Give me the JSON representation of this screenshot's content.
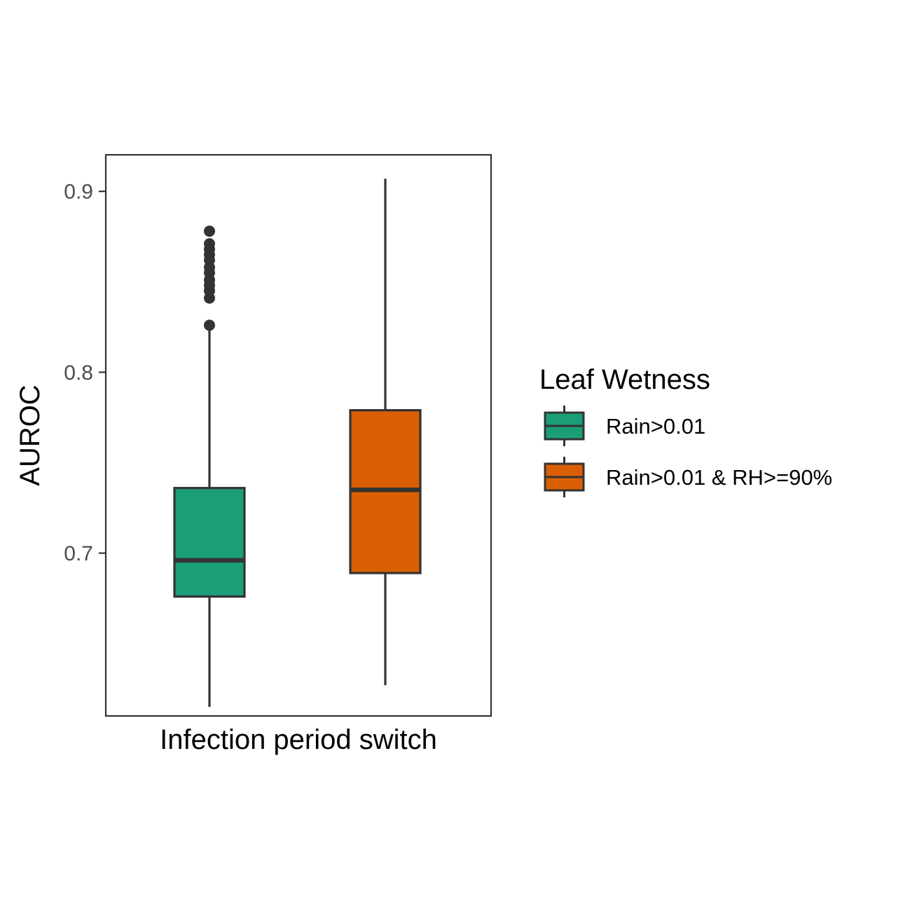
{
  "chart_data": {
    "type": "boxplot",
    "title": "",
    "xlabel": "Infection period switch",
    "ylabel": "AUROC",
    "ylim": [
      0.61,
      0.9202
    ],
    "yticks": [
      0.7,
      0.8,
      0.9
    ],
    "ytick_labels": [
      "0.7",
      "0.8",
      "0.9"
    ],
    "grid": false,
    "legend": {
      "title": "Leaf Wetness",
      "placement": "right",
      "entries": [
        "Rain>0.01",
        "Rain>0.01 & RH>=90%"
      ]
    },
    "colors": {
      "Rain>0.01": "#1b9e77",
      "Rain>0.01 & RH>=90%": "#d95f02",
      "outline": "#333333",
      "panel_border": "#333333",
      "tick_label": "#4d4d4d"
    },
    "series": [
      {
        "name": "Rain>0.01",
        "min": 0.615,
        "q1": 0.676,
        "median": 0.696,
        "q3": 0.736,
        "max": 0.823,
        "outliers": [
          0.826,
          0.841,
          0.845,
          0.848,
          0.851,
          0.855,
          0.858,
          0.862,
          0.865,
          0.868,
          0.871,
          0.878
        ]
      },
      {
        "name": "Rain>0.01 & RH>=90%",
        "min": 0.627,
        "q1": 0.689,
        "median": 0.735,
        "q3": 0.779,
        "max": 0.907,
        "outliers": []
      }
    ]
  }
}
